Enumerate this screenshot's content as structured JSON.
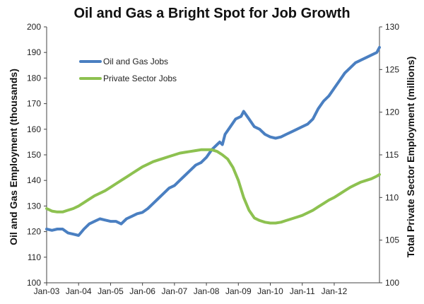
{
  "chart_data": {
    "type": "line",
    "title": "Oil and Gas a Bright Spot for Job Growth",
    "xlabel": "",
    "ylabel_left": "Oil and Gas Employment (thousands)",
    "ylabel_right": "Total Private Sector Employment (millions)",
    "x_ticks": [
      "Jan-03",
      "Jan-04",
      "Jan-05",
      "Jan-06",
      "Jan-07",
      "Jan-08",
      "Jan-09",
      "Jan-10",
      "Jan-11",
      "Jan-12"
    ],
    "y_left": {
      "min": 100,
      "max": 200,
      "ticks": [
        100,
        110,
        120,
        130,
        140,
        150,
        160,
        170,
        180,
        190,
        200
      ]
    },
    "y_right": {
      "min": 100,
      "max": 130,
      "ticks": [
        100,
        105,
        110,
        115,
        120,
        125,
        130
      ]
    },
    "legend_position": "top-left",
    "series": [
      {
        "name": "Oil and Gas Jobs",
        "axis": "left",
        "color": "#4a7fc1",
        "points": [
          [
            0,
            121
          ],
          [
            2,
            120.5
          ],
          [
            4,
            121
          ],
          [
            6,
            121
          ],
          [
            8,
            119.5
          ],
          [
            10,
            119
          ],
          [
            12,
            118.5
          ],
          [
            14,
            121
          ],
          [
            16,
            123
          ],
          [
            18,
            124
          ],
          [
            20,
            125
          ],
          [
            22,
            124.5
          ],
          [
            24,
            124
          ],
          [
            26,
            124
          ],
          [
            28,
            123
          ],
          [
            30,
            125
          ],
          [
            32,
            126
          ],
          [
            34,
            127
          ],
          [
            36,
            127.5
          ],
          [
            38,
            129
          ],
          [
            40,
            131
          ],
          [
            42,
            133
          ],
          [
            44,
            135
          ],
          [
            46,
            137
          ],
          [
            48,
            138
          ],
          [
            50,
            140
          ],
          [
            52,
            142
          ],
          [
            54,
            144
          ],
          [
            56,
            146
          ],
          [
            58,
            147
          ],
          [
            60,
            149
          ],
          [
            62,
            152
          ],
          [
            64,
            154
          ],
          [
            65,
            155
          ],
          [
            66,
            154
          ],
          [
            67,
            158
          ],
          [
            69,
            161
          ],
          [
            71,
            164
          ],
          [
            73,
            165
          ],
          [
            74,
            167
          ],
          [
            76,
            164
          ],
          [
            78,
            161
          ],
          [
            80,
            160
          ],
          [
            82,
            158
          ],
          [
            84,
            157
          ],
          [
            86,
            156.5
          ],
          [
            88,
            157
          ],
          [
            90,
            158
          ],
          [
            92,
            159
          ],
          [
            94,
            160
          ],
          [
            96,
            161
          ],
          [
            98,
            162
          ],
          [
            100,
            164
          ],
          [
            102,
            168
          ],
          [
            104,
            171
          ],
          [
            106,
            173
          ],
          [
            108,
            176
          ],
          [
            110,
            179
          ],
          [
            112,
            182
          ],
          [
            114,
            184
          ],
          [
            116,
            186
          ],
          [
            118,
            187
          ],
          [
            120,
            188
          ],
          [
            122,
            189
          ],
          [
            124,
            190
          ],
          [
            125,
            192
          ]
        ]
      },
      {
        "name": "Private Sector Jobs",
        "axis": "right",
        "color": "#8dc150",
        "points": [
          [
            0,
            108.7
          ],
          [
            2,
            108.4
          ],
          [
            4,
            108.3
          ],
          [
            6,
            108.3
          ],
          [
            8,
            108.5
          ],
          [
            10,
            108.7
          ],
          [
            12,
            109
          ],
          [
            14,
            109.4
          ],
          [
            16,
            109.8
          ],
          [
            18,
            110.2
          ],
          [
            20,
            110.5
          ],
          [
            22,
            110.8
          ],
          [
            24,
            111.2
          ],
          [
            26,
            111.6
          ],
          [
            28,
            112
          ],
          [
            30,
            112.4
          ],
          [
            32,
            112.8
          ],
          [
            34,
            113.2
          ],
          [
            36,
            113.6
          ],
          [
            38,
            113.9
          ],
          [
            40,
            114.2
          ],
          [
            42,
            114.4
          ],
          [
            44,
            114.6
          ],
          [
            46,
            114.8
          ],
          [
            48,
            115
          ],
          [
            50,
            115.2
          ],
          [
            52,
            115.3
          ],
          [
            54,
            115.4
          ],
          [
            56,
            115.5
          ],
          [
            58,
            115.6
          ],
          [
            60,
            115.6
          ],
          [
            62,
            115.6
          ],
          [
            64,
            115.4
          ],
          [
            66,
            115
          ],
          [
            68,
            114.5
          ],
          [
            70,
            113.5
          ],
          [
            72,
            112
          ],
          [
            74,
            110
          ],
          [
            76,
            108.5
          ],
          [
            78,
            107.6
          ],
          [
            80,
            107.3
          ],
          [
            82,
            107.1
          ],
          [
            84,
            107
          ],
          [
            86,
            107
          ],
          [
            88,
            107.1
          ],
          [
            90,
            107.3
          ],
          [
            92,
            107.5
          ],
          [
            94,
            107.7
          ],
          [
            96,
            107.9
          ],
          [
            98,
            108.2
          ],
          [
            100,
            108.5
          ],
          [
            102,
            108.9
          ],
          [
            104,
            109.3
          ],
          [
            106,
            109.7
          ],
          [
            108,
            110
          ],
          [
            110,
            110.4
          ],
          [
            112,
            110.8
          ],
          [
            114,
            111.2
          ],
          [
            116,
            111.5
          ],
          [
            118,
            111.8
          ],
          [
            120,
            112
          ],
          [
            122,
            112.2
          ],
          [
            124,
            112.5
          ],
          [
            125,
            112.7
          ]
        ]
      }
    ],
    "x_span_months": 125
  }
}
